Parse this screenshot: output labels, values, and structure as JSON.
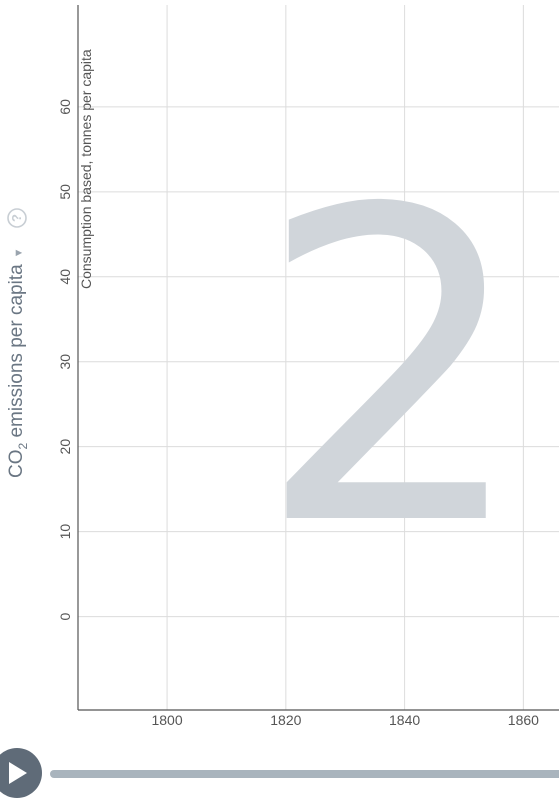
{
  "chart_data": {
    "type": "line",
    "title": "",
    "indicator": {
      "label": "CO",
      "subscript": "2",
      "label_rest": " emissions per capita",
      "dropdown_icon": "chevron-down-icon",
      "help_icon": "help-icon",
      "help_glyph": "?"
    },
    "ylabel": "Consumption based, tonnes per capita",
    "xlabel": "",
    "xlim": [
      1785,
      1866
    ],
    "ylim": [
      -11,
      72
    ],
    "x_ticks": [
      1800,
      1820,
      1840,
      1860
    ],
    "y_ticks": [
      0,
      10,
      20,
      30,
      40,
      50,
      60
    ],
    "grid": true,
    "series": [],
    "overlay_number": "2"
  },
  "controls": {
    "play_icon": "play-icon",
    "timeline": "timeline-slider"
  },
  "colors": {
    "grid": "#dcdcdc",
    "axis": "#555555",
    "overlay_number": "#d0d5da",
    "play_button": "#5f6b78",
    "timeline": "#a9b4bd",
    "indicator_text": "#6a7683"
  }
}
